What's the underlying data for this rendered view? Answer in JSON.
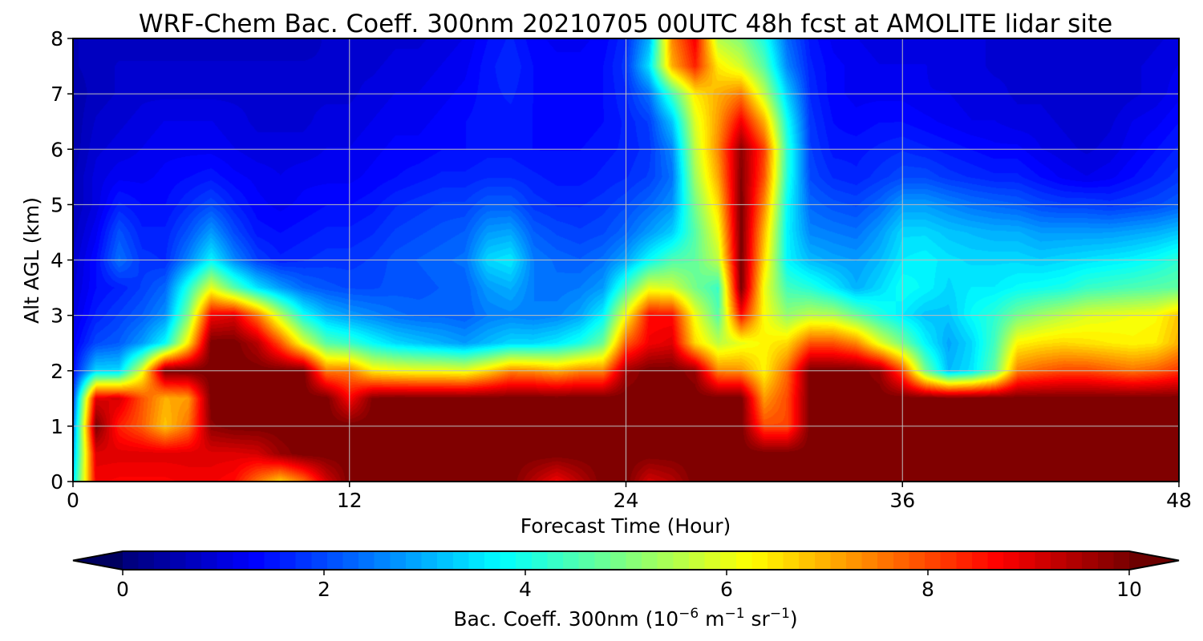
{
  "chart_data": {
    "type": "heatmap",
    "title": "WRF-Chem Bac. Coeff. 300nm  20210705 00UTC 48h fcst at AMOLITE lidar site",
    "xlabel": "Forecast Time (Hour)",
    "ylabel": "Alt AGL (km)",
    "xlim": [
      0,
      48
    ],
    "ylim": [
      0,
      8
    ],
    "x_ticks": [
      0,
      12,
      24,
      36,
      48
    ],
    "y_ticks": [
      0,
      1,
      2,
      3,
      4,
      5,
      6,
      7,
      8
    ],
    "grid": true,
    "colormap": "jet",
    "colorbar": {
      "orientation": "horizontal",
      "placement": "bottom",
      "range": [
        0,
        10
      ],
      "ticks": [
        0,
        2,
        4,
        6,
        8,
        10
      ],
      "extend": "both",
      "label_parts": {
        "pre": "Bac. Coeff. 300nm  (10",
        "exp1": "−6",
        "mid1": " m",
        "exp2": "−1",
        "mid2": " sr",
        "exp3": "−1",
        "post": ")"
      }
    },
    "x": [
      0,
      1,
      2,
      3,
      4,
      5,
      6,
      7,
      8,
      9,
      10,
      11,
      12,
      13,
      14,
      15,
      16,
      17,
      18,
      19,
      20,
      21,
      22,
      23,
      24,
      25,
      26,
      27,
      28,
      29,
      30,
      31,
      32,
      33,
      34,
      35,
      36,
      37,
      38,
      39,
      40,
      41,
      42,
      43,
      44,
      45,
      46,
      47,
      48
    ],
    "y": [
      0,
      0.5,
      1,
      1.5,
      2,
      2.5,
      3,
      3.5,
      4,
      4.5,
      5,
      5.5,
      6,
      6.5,
      7,
      7.5,
      8
    ],
    "z": [
      [
        3.4,
        8.8,
        8.7,
        8.7,
        8.7,
        8.8,
        8.8,
        8.6,
        7.6,
        6.7,
        7.6,
        9.1,
        10.0,
        10.0,
        10.0,
        10.0,
        10.0,
        10.0,
        10.0,
        10.0,
        9.4,
        8.8,
        9.4,
        10.0,
        10.0,
        9.1,
        9.4,
        10.0,
        10.0,
        10.0,
        10.0,
        10.0,
        10.0,
        10.0,
        10.0,
        10.0,
        10.0,
        10.0,
        10.0,
        10.0,
        10.0,
        10.0,
        10.0,
        10.0,
        10.0,
        10.0,
        10.0,
        10.0,
        10.0
      ],
      [
        2.9,
        9.0,
        9.0,
        9.0,
        9.0,
        9.0,
        9.0,
        9.0,
        9.1,
        9.7,
        10.0,
        10.0,
        10.0,
        10.0,
        10.0,
        10.0,
        10.0,
        10.0,
        10.0,
        10.0,
        10.0,
        10.0,
        10.0,
        10.0,
        10.0,
        10.0,
        10.0,
        10.0,
        10.0,
        10.0,
        10.0,
        10.0,
        10.0,
        10.0,
        10.0,
        10.0,
        10.0,
        10.0,
        10.0,
        10.0,
        10.0,
        10.0,
        10.0,
        10.0,
        10.0,
        10.0,
        10.0,
        10.0,
        10.0
      ],
      [
        2.4,
        10.0,
        8.4,
        7.8,
        6.8,
        7.6,
        9.8,
        10.0,
        10.0,
        10.0,
        10.0,
        10.0,
        10.0,
        10.0,
        10.0,
        10.0,
        10.0,
        10.0,
        10.0,
        10.0,
        10.0,
        10.0,
        10.0,
        10.0,
        10.0,
        10.0,
        10.0,
        10.0,
        10.0,
        10.0,
        8.0,
        8.0,
        10.0,
        10.0,
        10.0,
        10.0,
        10.0,
        10.0,
        10.0,
        10.0,
        10.0,
        10.0,
        10.0,
        10.0,
        10.0,
        10.0,
        10.0,
        10.0,
        10.0
      ],
      [
        1.9,
        9.0,
        9.1,
        7.9,
        7.0,
        7.2,
        10.0,
        10.0,
        10.0,
        10.0,
        10.0,
        10.0,
        8.7,
        9.9,
        10.0,
        10.0,
        10.0,
        10.0,
        10.0,
        10.0,
        10.0,
        10.0,
        10.0,
        10.0,
        10.0,
        10.0,
        10.0,
        10.0,
        10.0,
        10.0,
        7.2,
        8.0,
        10.0,
        10.0,
        10.0,
        10.0,
        10.0,
        10.0,
        10.0,
        10.0,
        10.0,
        10.0,
        10.0,
        10.0,
        10.0,
        10.0,
        10.0,
        10.0,
        10.0
      ],
      [
        1.4,
        3.4,
        3.4,
        6.0,
        10.0,
        10.0,
        10.0,
        10.0,
        10.0,
        10.0,
        10.0,
        7.5,
        7.5,
        6.4,
        6.2,
        6.1,
        6.1,
        6.0,
        6.6,
        7.4,
        7.3,
        7.0,
        7.4,
        7.4,
        9.6,
        10.0,
        10.0,
        9.7,
        7.4,
        7.3,
        6.3,
        7.7,
        10.0,
        10.0,
        10.0,
        9.7,
        8.0,
        4.9,
        3.1,
        3.5,
        4.7,
        7.5,
        7.8,
        8.0,
        8.0,
        7.8,
        7.6,
        7.8,
        8.2
      ],
      [
        1.2,
        2.0,
        2.2,
        2.8,
        3.8,
        6.4,
        10.0,
        10.0,
        9.4,
        7.9,
        6.0,
        4.6,
        4.3,
        3.8,
        3.4,
        3.2,
        3.0,
        2.8,
        3.1,
        3.4,
        3.4,
        3.6,
        4.0,
        4.8,
        7.8,
        8.8,
        9.0,
        6.6,
        5.6,
        6.0,
        6.3,
        6.6,
        7.9,
        7.9,
        7.4,
        6.0,
        4.9,
        3.7,
        2.9,
        3.4,
        4.4,
        6.3,
        6.5,
        6.6,
        6.5,
        6.4,
        6.3,
        6.4,
        7.0
      ],
      [
        1.0,
        1.6,
        1.9,
        2.2,
        2.7,
        5.0,
        8.8,
        9.0,
        7.6,
        5.6,
        3.9,
        3.1,
        2.8,
        2.6,
        2.4,
        2.3,
        2.3,
        2.2,
        2.5,
        2.6,
        2.5,
        2.6,
        2.9,
        3.7,
        6.2,
        8.6,
        8.6,
        6.1,
        4.6,
        8.6,
        6.2,
        5.2,
        5.6,
        5.5,
        4.8,
        4.1,
        3.6,
        3.2,
        3.2,
        3.8,
        4.2,
        4.9,
        5.3,
        5.6,
        5.9,
        6.0,
        6.1,
        6.2,
        6.8
      ],
      [
        0.9,
        1.4,
        1.6,
        1.9,
        2.3,
        4.1,
        6.0,
        4.6,
        3.5,
        2.8,
        2.3,
        2.1,
        2.0,
        2.0,
        2.1,
        2.1,
        2.2,
        2.2,
        2.8,
        3.0,
        2.5,
        2.4,
        2.5,
        2.8,
        4.4,
        6.0,
        5.8,
        4.9,
        4.3,
        10.0,
        6.1,
        4.4,
        4.1,
        3.6,
        3.0,
        3.4,
        3.9,
        3.7,
        3.4,
        3.6,
        3.6,
        3.8,
        3.9,
        4.0,
        4.3,
        4.4,
        4.5,
        4.6,
        4.7
      ],
      [
        0.8,
        1.4,
        2.4,
        1.8,
        1.7,
        2.6,
        3.7,
        2.6,
        1.9,
        1.6,
        1.7,
        1.8,
        1.8,
        1.9,
        2.1,
        2.2,
        2.3,
        2.4,
        3.4,
        3.6,
        2.5,
        2.3,
        2.2,
        2.4,
        2.9,
        3.8,
        4.5,
        4.7,
        5.6,
        10.0,
        6.6,
        3.7,
        3.1,
        2.9,
        2.8,
        3.1,
        3.6,
        3.7,
        3.5,
        3.4,
        3.4,
        3.4,
        3.3,
        3.4,
        3.5,
        3.6,
        3.7,
        3.9,
        4.2
      ],
      [
        0.7,
        1.2,
        2.1,
        1.6,
        1.6,
        2.1,
        2.8,
        2.0,
        1.5,
        1.4,
        1.5,
        1.6,
        1.6,
        1.7,
        1.9,
        2.0,
        2.1,
        2.2,
        2.8,
        2.9,
        2.2,
        2.0,
        1.9,
        2.0,
        2.3,
        2.8,
        3.3,
        4.6,
        6.1,
        10.0,
        6.9,
        3.7,
        2.6,
        2.5,
        2.4,
        2.8,
        3.4,
        3.4,
        3.2,
        3.1,
        3.0,
        3.0,
        2.8,
        2.8,
        2.8,
        2.8,
        2.9,
        3.0,
        3.2
      ],
      [
        0.6,
        1.0,
        1.6,
        1.4,
        1.4,
        1.7,
        2.0,
        1.6,
        1.3,
        1.2,
        1.3,
        1.4,
        1.4,
        1.5,
        1.7,
        1.8,
        1.9,
        1.9,
        2.2,
        2.2,
        1.8,
        1.7,
        1.7,
        1.8,
        2.0,
        2.3,
        2.7,
        4.9,
        6.6,
        10.0,
        7.4,
        3.8,
        2.3,
        2.1,
        2.0,
        2.3,
        2.8,
        2.8,
        2.6,
        2.4,
        2.3,
        2.2,
        2.0,
        1.9,
        1.9,
        1.8,
        1.9,
        2.0,
        2.2
      ],
      [
        0.6,
        1.0,
        1.2,
        1.2,
        1.3,
        1.4,
        1.5,
        1.3,
        1.2,
        1.1,
        1.2,
        1.2,
        1.2,
        1.3,
        1.4,
        1.5,
        1.6,
        1.6,
        1.7,
        1.7,
        1.6,
        1.5,
        1.5,
        1.6,
        1.7,
        1.9,
        2.4,
        5.3,
        7.1,
        9.9,
        7.9,
        4.1,
        2.0,
        1.7,
        1.6,
        1.8,
        2.0,
        2.0,
        1.8,
        1.7,
        1.6,
        1.6,
        1.4,
        1.2,
        1.1,
        1.2,
        1.4,
        1.6,
        1.8
      ],
      [
        0.5,
        0.9,
        1.0,
        1.1,
        1.2,
        1.2,
        1.2,
        1.1,
        1.0,
        1.0,
        1.0,
        1.1,
        1.1,
        1.2,
        1.3,
        1.3,
        1.4,
        1.4,
        1.5,
        1.5,
        1.4,
        1.4,
        1.4,
        1.5,
        1.6,
        1.8,
        2.6,
        5.6,
        7.4,
        9.8,
        8.1,
        4.2,
        1.9,
        1.5,
        1.5,
        1.6,
        1.7,
        1.6,
        1.5,
        1.4,
        1.3,
        1.3,
        1.1,
        1.0,
        0.9,
        1.0,
        1.2,
        1.4,
        1.6
      ],
      [
        0.5,
        0.8,
        0.9,
        1.0,
        1.1,
        1.1,
        1.1,
        1.0,
        0.9,
        0.9,
        0.9,
        1.0,
        1.0,
        1.1,
        1.2,
        1.2,
        1.3,
        1.4,
        1.5,
        1.5,
        1.4,
        1.3,
        1.3,
        1.4,
        1.6,
        1.9,
        3.2,
        5.9,
        7.2,
        8.8,
        7.0,
        3.9,
        1.8,
        1.4,
        1.3,
        1.4,
        1.4,
        1.3,
        1.2,
        1.1,
        1.1,
        1.0,
        1.0,
        0.9,
        0.8,
        0.9,
        1.1,
        1.2,
        1.4
      ],
      [
        0.5,
        0.7,
        0.8,
        0.9,
        0.9,
        0.9,
        0.9,
        0.9,
        0.9,
        0.9,
        0.9,
        0.9,
        0.9,
        1.0,
        1.1,
        1.1,
        1.2,
        1.3,
        1.5,
        1.6,
        1.4,
        1.3,
        1.3,
        1.4,
        1.7,
        2.4,
        4.4,
        6.4,
        7.0,
        7.5,
        5.6,
        3.3,
        1.7,
        1.3,
        1.2,
        1.2,
        1.2,
        1.1,
        1.1,
        1.0,
        1.0,
        0.9,
        0.9,
        0.8,
        0.8,
        0.8,
        0.9,
        1.0,
        1.2
      ],
      [
        0.6,
        0.7,
        0.8,
        0.8,
        0.8,
        0.8,
        0.8,
        0.8,
        0.8,
        0.8,
        0.8,
        0.8,
        0.9,
        0.9,
        1.0,
        1.0,
        1.1,
        1.2,
        1.5,
        1.7,
        1.4,
        1.3,
        1.3,
        1.4,
        1.8,
        3.5,
        7.0,
        8.4,
        6.4,
        5.8,
        4.6,
        2.6,
        1.6,
        1.3,
        1.2,
        1.1,
        1.1,
        1.1,
        1.0,
        1.0,
        0.9,
        0.9,
        0.9,
        0.8,
        0.8,
        0.8,
        0.9,
        1.0,
        1.1
      ],
      [
        0.6,
        0.7,
        0.7,
        0.7,
        0.7,
        0.7,
        0.7,
        0.7,
        0.7,
        0.7,
        0.7,
        0.8,
        0.8,
        0.8,
        0.9,
        0.9,
        1.0,
        1.1,
        1.4,
        1.6,
        1.3,
        1.2,
        1.2,
        1.3,
        1.7,
        3.0,
        7.4,
        8.8,
        5.5,
        5.0,
        4.0,
        2.3,
        1.5,
        1.2,
        1.1,
        1.0,
        1.0,
        1.0,
        1.0,
        1.0,
        0.9,
        0.9,
        0.8,
        0.8,
        0.8,
        0.8,
        0.8,
        0.9,
        1.0
      ]
    ]
  }
}
